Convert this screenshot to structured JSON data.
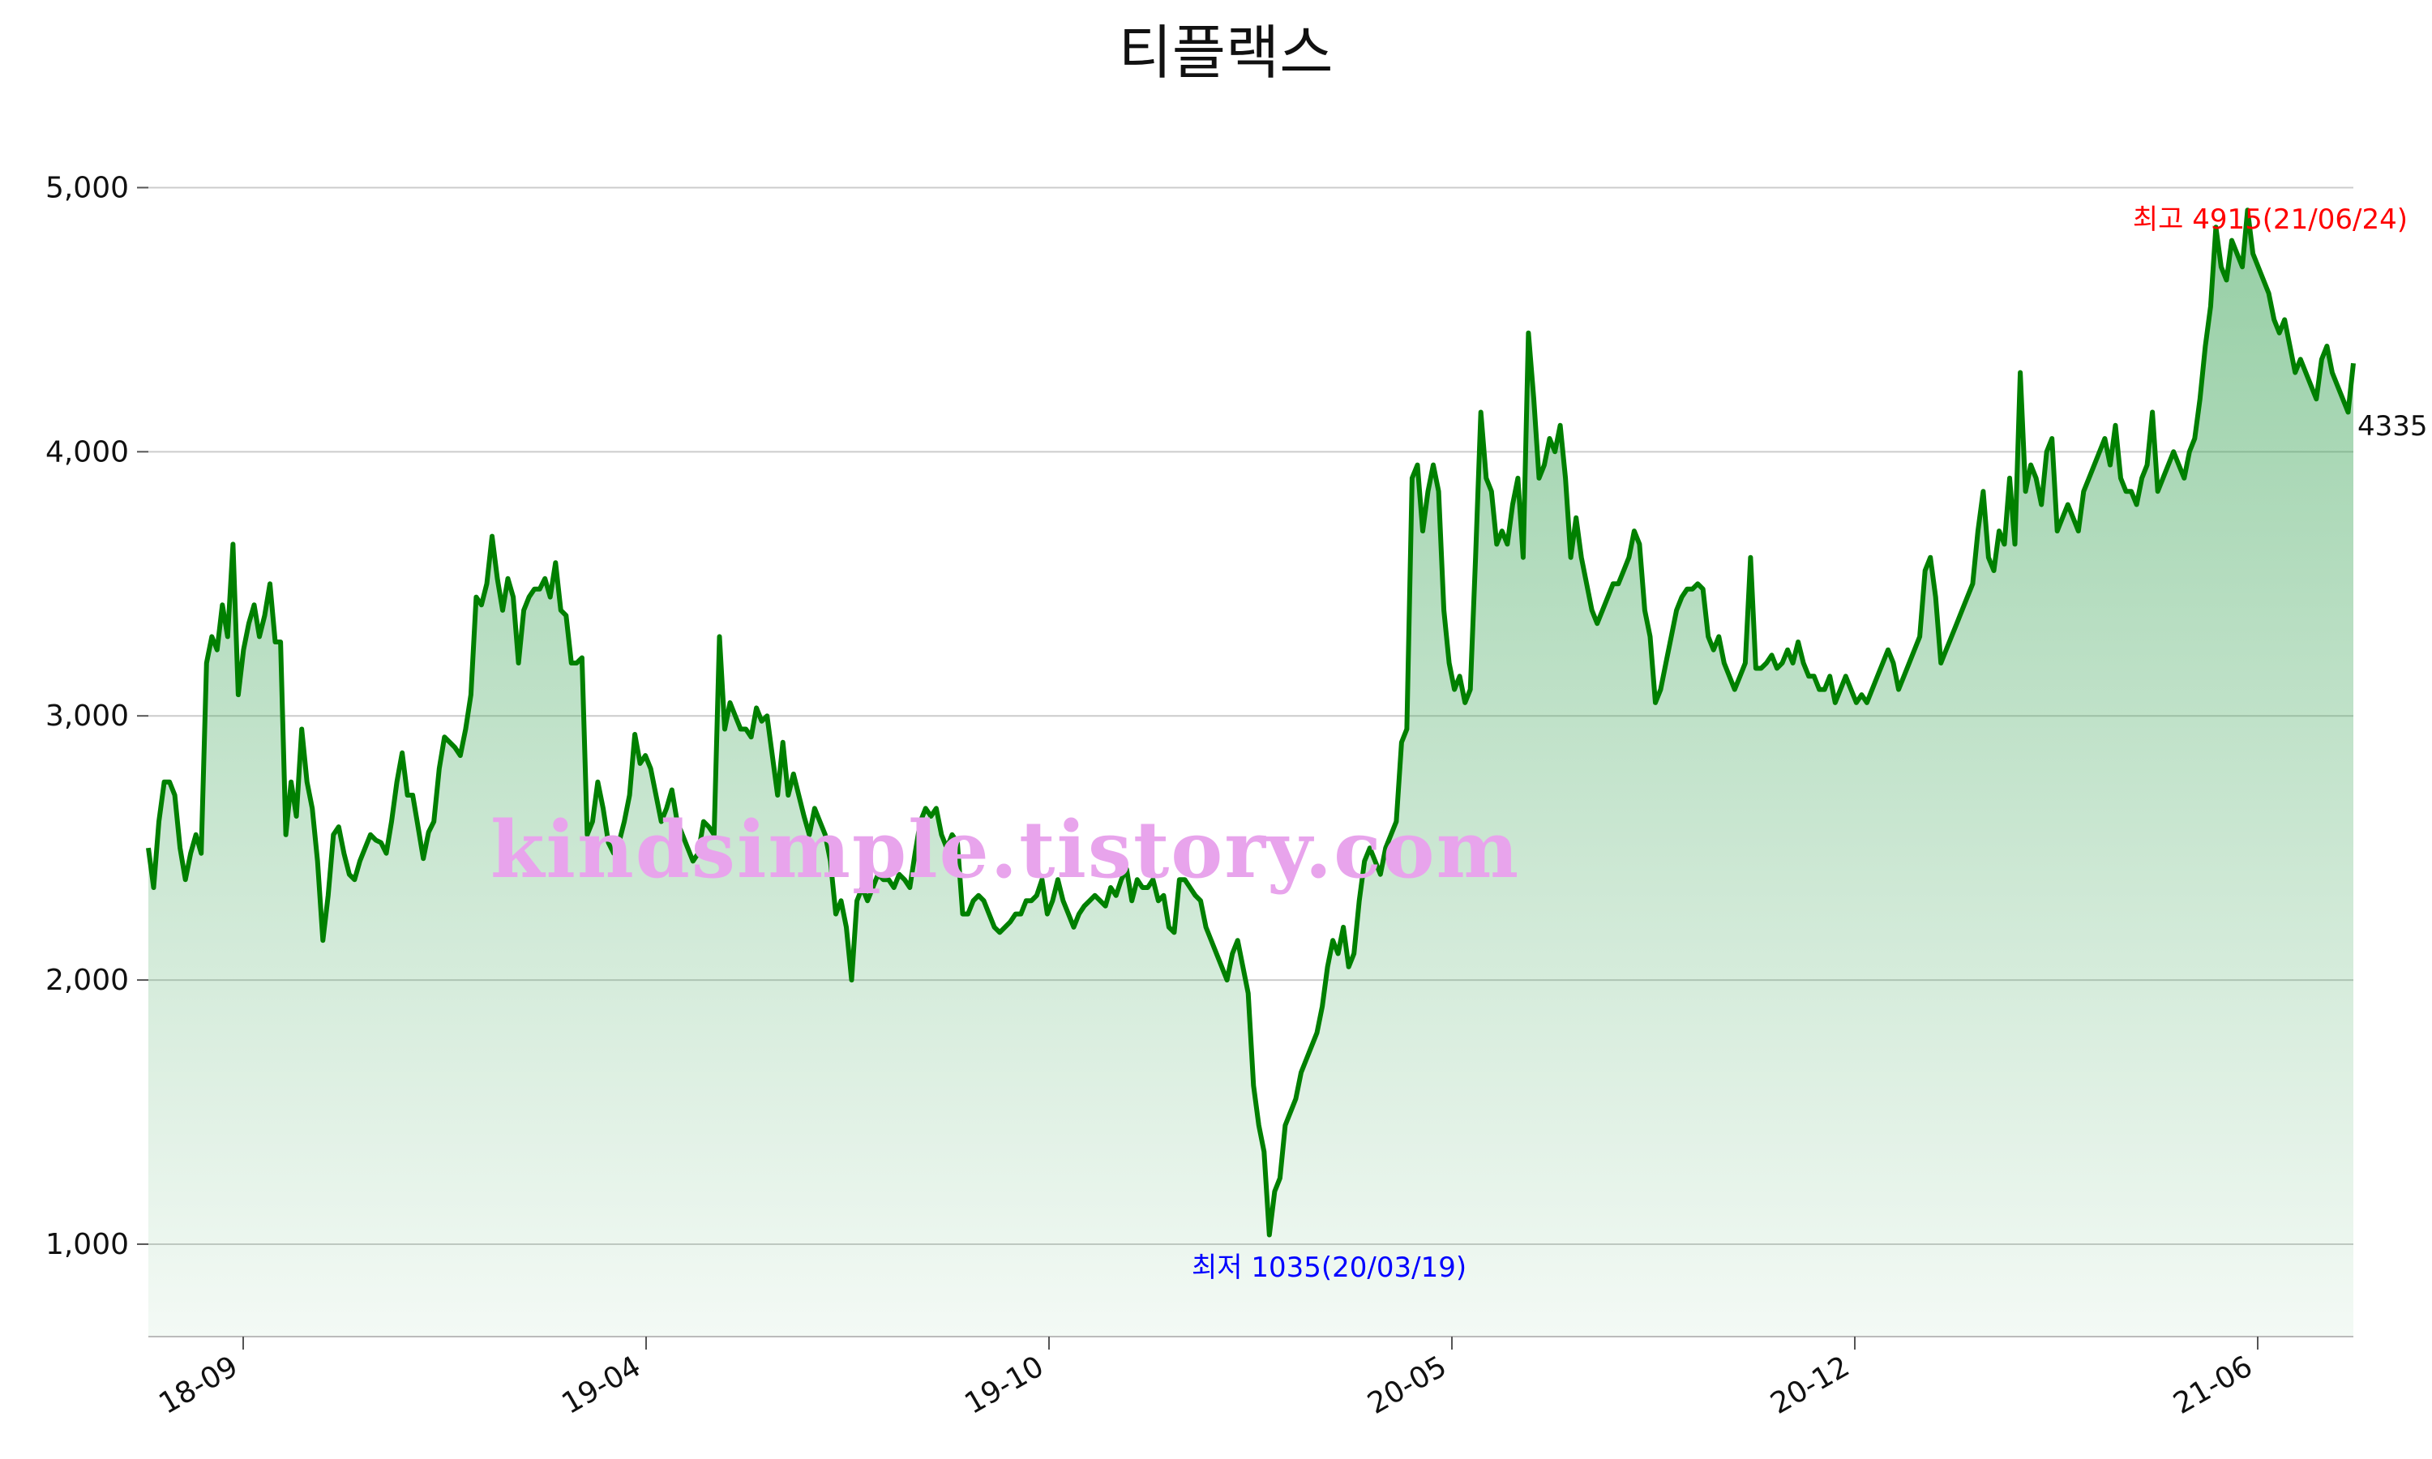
{
  "chart_data": {
    "type": "area",
    "title": "티플랙스",
    "xlabel": "",
    "ylabel": "",
    "x_tick_labels": [
      "18-09",
      "19-04",
      "19-10",
      "20-05",
      "20-12",
      "21-06"
    ],
    "y_tick_labels": [
      "1,000",
      "2,000",
      "3,000",
      "4,000",
      "5,000"
    ],
    "y_ticks": [
      1000,
      2000,
      3000,
      4000,
      5000
    ],
    "ylim": [
      650,
      5250
    ],
    "grid": "horizontal",
    "line_color": "#008000",
    "fill_color": "#3fa65a",
    "series": [
      {
        "values": [
          2500,
          2350,
          2600,
          2750,
          2750,
          2700,
          2500,
          2380,
          2480,
          2550,
          2480,
          3200,
          3300,
          3250,
          3420,
          3300,
          3650,
          3080,
          3250,
          3350,
          3420,
          3300,
          3380,
          3500,
          3280,
          3280,
          2550,
          2750,
          2620,
          2950,
          2750,
          2650,
          2450,
          2150,
          2320,
          2550,
          2580,
          2480,
          2400,
          2380,
          2450,
          2500,
          2550,
          2530,
          2520,
          2480,
          2600,
          2750,
          2860,
          2700,
          2700,
          2580,
          2460,
          2560,
          2600,
          2800,
          2920,
          2900,
          2880,
          2850,
          2950,
          3080,
          3450,
          3420,
          3500,
          3680,
          3520,
          3400,
          3520,
          3450,
          3200,
          3400,
          3450,
          3480,
          3480,
          3520,
          3450,
          3580,
          3400,
          3380,
          3200,
          3200,
          3220,
          2550,
          2600,
          2750,
          2650,
          2520,
          2480,
          2520,
          2600,
          2700,
          2930,
          2820,
          2850,
          2800,
          2700,
          2600,
          2650,
          2720,
          2600,
          2550,
          2500,
          2450,
          2480,
          2600,
          2580,
          2550,
          3300,
          2950,
          3050,
          3000,
          2950,
          2950,
          2920,
          3030,
          2980,
          3000,
          2850,
          2700,
          2900,
          2700,
          2780,
          2700,
          2620,
          2550,
          2650,
          2600,
          2550,
          2450,
          2250,
          2300,
          2200,
          2000,
          2300,
          2350,
          2300,
          2350,
          2400,
          2380,
          2380,
          2350,
          2400,
          2380,
          2350,
          2480,
          2600,
          2650,
          2620,
          2650,
          2550,
          2500,
          2550,
          2520,
          2250,
          2250,
          2300,
          2320,
          2300,
          2250,
          2200,
          2180,
          2200,
          2220,
          2250,
          2250,
          2300,
          2300,
          2320,
          2380,
          2250,
          2300,
          2380,
          2300,
          2250,
          2200,
          2250,
          2280,
          2300,
          2320,
          2300,
          2280,
          2350,
          2320,
          2380,
          2420,
          2300,
          2380,
          2350,
          2350,
          2380,
          2300,
          2320,
          2200,
          2180,
          2380,
          2380,
          2350,
          2320,
          2300,
          2200,
          2150,
          2100,
          2050,
          2000,
          2100,
          2150,
          2050,
          1950,
          1600,
          1450,
          1350,
          1035,
          1200,
          1250,
          1450,
          1500,
          1550,
          1650,
          1700,
          1750,
          1800,
          1900,
          2050,
          2150,
          2100,
          2200,
          2050,
          2100,
          2300,
          2450,
          2500,
          2450,
          2400,
          2500,
          2550,
          2600,
          2900,
          2950,
          3900,
          3950,
          3700,
          3850,
          3950,
          3850,
          3400,
          3200,
          3100,
          3150,
          3050,
          3100,
          3600,
          4150,
          3900,
          3850,
          3650,
          3700,
          3650,
          3800,
          3900,
          3600,
          4450,
          4200,
          3900,
          3950,
          4050,
          4000,
          4100,
          3900,
          3600,
          3750,
          3600,
          3500,
          3400,
          3350,
          3400,
          3450,
          3500,
          3500,
          3550,
          3600,
          3700,
          3650,
          3400,
          3300,
          3050,
          3100,
          3200,
          3300,
          3400,
          3450,
          3480,
          3480,
          3500,
          3480,
          3300,
          3250,
          3300,
          3200,
          3150,
          3100,
          3150,
          3200,
          3600,
          3180,
          3180,
          3200,
          3230,
          3180,
          3200,
          3250,
          3200,
          3280,
          3200,
          3150,
          3150,
          3100,
          3100,
          3150,
          3050,
          3100,
          3150,
          3100,
          3050,
          3080,
          3050,
          3100,
          3150,
          3200,
          3250,
          3200,
          3100,
          3150,
          3200,
          3250,
          3300,
          3550,
          3600,
          3450,
          3200,
          3250,
          3300,
          3350,
          3400,
          3450,
          3500,
          3700,
          3850,
          3600,
          3550,
          3700,
          3650,
          3900,
          3650,
          4300,
          3850,
          3950,
          3900,
          3800,
          4000,
          4050,
          3700,
          3750,
          3800,
          3750,
          3700,
          3850,
          3900,
          3950,
          4000,
          4050,
          3950,
          4100,
          3900,
          3850,
          3850,
          3800,
          3900,
          3950,
          4150,
          3850,
          3900,
          3950,
          4000,
          3950,
          3900,
          4000,
          4050,
          4200,
          4400,
          4550,
          4850,
          4700,
          4650,
          4800,
          4750,
          4700,
          4915,
          4750,
          4700,
          4650,
          4600,
          4500,
          4450,
          4500,
          4400,
          4300,
          4350,
          4300,
          4250,
          4200,
          4350,
          4400,
          4300,
          4250,
          4200,
          4150,
          4335
        ]
      }
    ],
    "annotations": {
      "high": {
        "label": "최고 4915(21/06/24)",
        "color": "#ff0000"
      },
      "low": {
        "label": "최저 1035(20/03/19)",
        "color": "#0000ff"
      },
      "last": {
        "label": "4335",
        "color": "#111111"
      }
    },
    "watermark": {
      "text": "kindsimple.tistory.com",
      "color": "#e8a4ec"
    }
  }
}
